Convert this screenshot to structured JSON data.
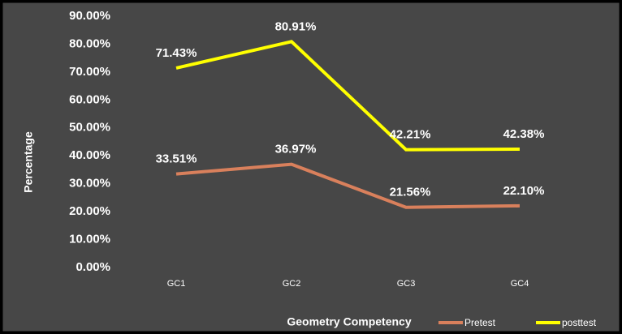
{
  "chart_data": {
    "type": "line",
    "categories": [
      "GC1",
      "GC2",
      "GC3",
      "GC4"
    ],
    "series": [
      {
        "name": "Pretest",
        "color": "#d9805c",
        "values": [
          33.51,
          36.97,
          21.56,
          22.1
        ],
        "value_labels": [
          "33.51%",
          "36.97%",
          "21.56%",
          "22.10%"
        ]
      },
      {
        "name": "posttest",
        "color": "#ffff00",
        "values": [
          71.43,
          80.91,
          42.21,
          42.38
        ],
        "value_labels": [
          "71.43%",
          "80.91%",
          "42.21%",
          "42.38%"
        ]
      }
    ],
    "ylim": [
      0,
      90
    ],
    "yticks": [
      {
        "value": 0,
        "label": "0.00%"
      },
      {
        "value": 10,
        "label": "10.00%"
      },
      {
        "value": 20,
        "label": "20.00%"
      },
      {
        "value": 30,
        "label": "30.00%"
      },
      {
        "value": 40,
        "label": "40.00%"
      },
      {
        "value": 50,
        "label": "50.00%"
      },
      {
        "value": 60,
        "label": "60.00%"
      },
      {
        "value": 70,
        "label": "70.00%"
      },
      {
        "value": 80,
        "label": "80.00%"
      },
      {
        "value": 90,
        "label": "90.00%"
      }
    ],
    "x_label": "Geometry Competency",
    "y_label": "Percentage",
    "legend": "bottom-right"
  }
}
